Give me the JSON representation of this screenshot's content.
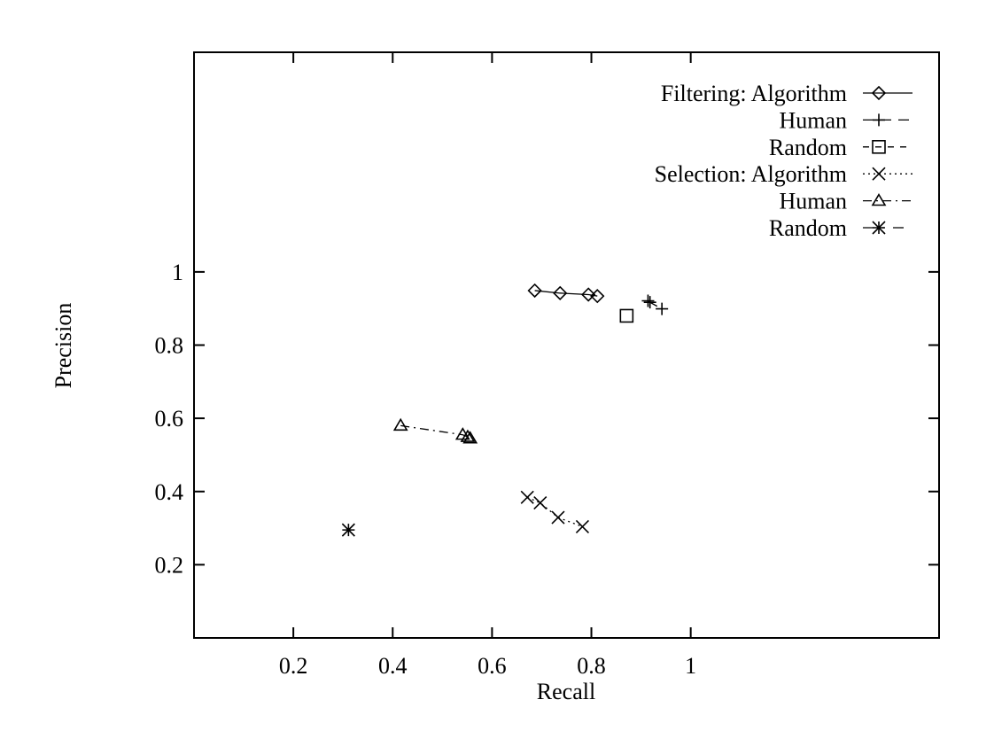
{
  "chart_data": {
    "type": "scatter",
    "xlabel": "Recall",
    "ylabel": "Precision",
    "xlim": [
      0,
      1.5
    ],
    "ylim": [
      0,
      1.6
    ],
    "xticks": [
      "0.2",
      "0.4",
      "0.6",
      "0.8",
      "1"
    ],
    "xtick_values": [
      0.2,
      0.4,
      0.6,
      0.8,
      1.0
    ],
    "yticks": [
      "0.2",
      "0.4",
      "0.6",
      "0.8",
      "1"
    ],
    "ytick_values": [
      0.2,
      0.4,
      0.6,
      0.8,
      1.0
    ],
    "grid": false,
    "legend_position": "top-right",
    "series": [
      {
        "name": "Filtering: Algorithm",
        "marker": "diamond",
        "line": "solid",
        "points": [
          [
            0.686,
            0.949
          ],
          [
            0.737,
            0.942
          ],
          [
            0.794,
            0.938
          ],
          [
            0.812,
            0.934
          ]
        ]
      },
      {
        "name": "Human",
        "marker": "plus",
        "line": "dashed",
        "points": [
          [
            0.914,
            0.921
          ],
          [
            0.918,
            0.917
          ],
          [
            0.942,
            0.899
          ]
        ]
      },
      {
        "name": "Random",
        "marker": "square",
        "line": "dashed-fine",
        "points": [
          [
            0.871,
            0.88
          ]
        ]
      },
      {
        "name": "Selection: Algorithm",
        "marker": "cross",
        "line": "dotted",
        "points": [
          [
            0.671,
            0.384
          ],
          [
            0.697,
            0.369
          ],
          [
            0.733,
            0.329
          ],
          [
            0.782,
            0.304
          ]
        ]
      },
      {
        "name": "Human",
        "marker": "triangle",
        "line": "dash-dot",
        "points": [
          [
            0.416,
            0.58
          ],
          [
            0.541,
            0.555
          ],
          [
            0.551,
            0.549
          ],
          [
            0.556,
            0.545
          ]
        ]
      },
      {
        "name": "Random",
        "marker": "star",
        "line": "dash-dot-sparse",
        "points": [
          [
            0.311,
            0.295
          ]
        ]
      }
    ]
  }
}
